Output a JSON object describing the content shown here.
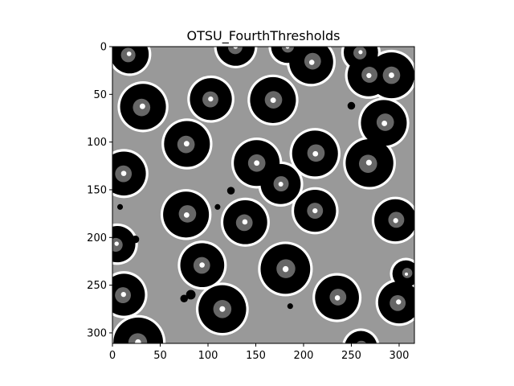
{
  "title": "OTSU_FourthThresholds",
  "image": {
    "width": 316,
    "height": 311,
    "levels": {
      "background": "#999999",
      "halo": "#ffffff",
      "cell": "#000000",
      "nucleus": "#666666"
    },
    "cells": [
      {
        "cx": 18,
        "cy": 8,
        "r": 20
      },
      {
        "cx": 129,
        "cy": 0,
        "r": 20
      },
      {
        "cx": 183,
        "cy": 0,
        "r": 17
      },
      {
        "cx": 208,
        "cy": 16,
        "r": 23
      },
      {
        "cx": 260,
        "cy": 6,
        "r": 18
      },
      {
        "cx": 292,
        "cy": 30,
        "r": 24
      },
      {
        "cx": 268,
        "cy": 30,
        "r": 22
      },
      {
        "cx": 32,
        "cy": 63,
        "r": 24
      },
      {
        "cx": 103,
        "cy": 55,
        "r": 22
      },
      {
        "cx": 168,
        "cy": 56,
        "r": 24
      },
      {
        "cx": 284,
        "cy": 80,
        "r": 24
      },
      {
        "cx": 78,
        "cy": 102,
        "r": 24
      },
      {
        "cx": 151,
        "cy": 122,
        "r": 24
      },
      {
        "cx": 212,
        "cy": 112,
        "r": 24
      },
      {
        "cx": 269,
        "cy": 122,
        "r": 25
      },
      {
        "cx": 12,
        "cy": 133,
        "r": 23
      },
      {
        "cx": 176,
        "cy": 144,
        "r": 21
      },
      {
        "cx": 77,
        "cy": 176,
        "r": 24
      },
      {
        "cx": 139,
        "cy": 184,
        "r": 23
      },
      {
        "cx": 212,
        "cy": 172,
        "r": 22
      },
      {
        "cx": 296,
        "cy": 182,
        "r": 22
      },
      {
        "cx": 5,
        "cy": 207,
        "r": 19
      },
      {
        "cx": 94,
        "cy": 229,
        "r": 23
      },
      {
        "cx": 181,
        "cy": 233,
        "r": 26
      },
      {
        "cx": 307,
        "cy": 238,
        "r": 14
      },
      {
        "cx": 12,
        "cy": 260,
        "r": 22
      },
      {
        "cx": 115,
        "cy": 275,
        "r": 25
      },
      {
        "cx": 235,
        "cy": 263,
        "r": 23
      },
      {
        "cx": 300,
        "cy": 268,
        "r": 22
      },
      {
        "cx": 27,
        "cy": 310,
        "r": 26
      },
      {
        "cx": 260,
        "cy": 315,
        "r": 17
      }
    ],
    "spots": [
      {
        "cx": 250,
        "cy": 62,
        "r": 4
      },
      {
        "cx": 124,
        "cy": 151,
        "r": 4
      },
      {
        "cx": 24,
        "cy": 202,
        "r": 4
      },
      {
        "cx": 82,
        "cy": 260,
        "r": 5
      },
      {
        "cx": 75,
        "cy": 264,
        "r": 4
      },
      {
        "cx": 186,
        "cy": 272,
        "r": 3
      },
      {
        "cx": 8,
        "cy": 168,
        "r": 3
      },
      {
        "cx": 110,
        "cy": 168,
        "r": 3
      }
    ]
  },
  "axes": {
    "x_ticks": [
      0,
      50,
      100,
      150,
      200,
      250,
      300
    ],
    "y_ticks": [
      0,
      50,
      100,
      150,
      200,
      250,
      300
    ],
    "xlim": [
      0,
      316
    ],
    "ylim": [
      0,
      311
    ]
  }
}
